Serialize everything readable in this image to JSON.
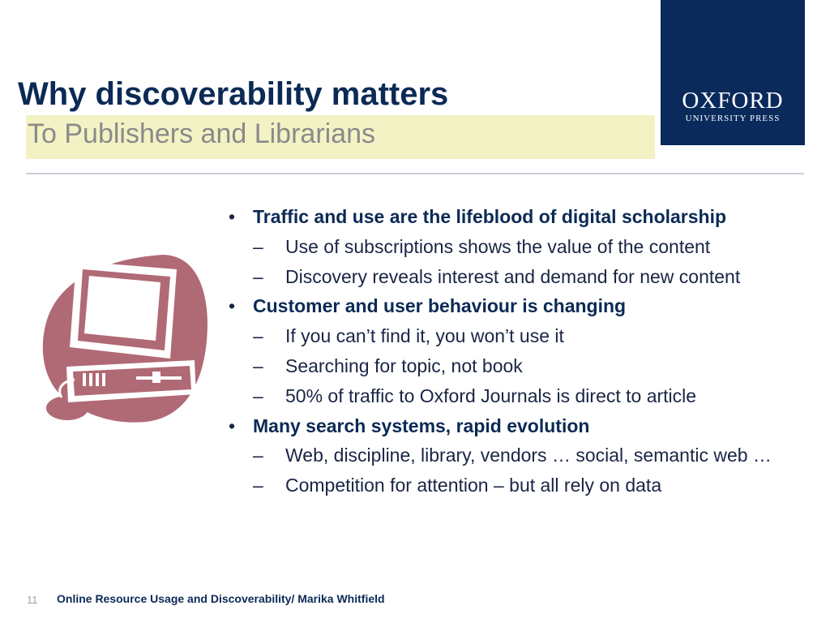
{
  "slide": {
    "title": "Why discoverability matters",
    "subtitle": "To Publishers and Librarians"
  },
  "logo": {
    "main": "OXFORD",
    "sub": "UNIVERSITY PRESS"
  },
  "bullets": [
    {
      "level": 1,
      "marker": "•",
      "text": "Traffic and use are the lifeblood of digital scholarship"
    },
    {
      "level": 2,
      "marker": "–",
      "text": "Use of subscriptions shows the value of the content"
    },
    {
      "level": 2,
      "marker": "–",
      "text": "Discovery reveals interest and demand for new content"
    },
    {
      "level": 1,
      "marker": "•",
      "text": "Customer and user behaviour is changing"
    },
    {
      "level": 2,
      "marker": "–",
      "text": "If you can’t find it, you won’t use it"
    },
    {
      "level": 2,
      "marker": "–",
      "text": "Searching for topic, not book"
    },
    {
      "level": 2,
      "marker": "–",
      "text": "50% of traffic to Oxford Journals is direct to article"
    },
    {
      "level": 1,
      "marker": "•",
      "text": "Many search systems, rapid evolution"
    },
    {
      "level": 2,
      "marker": "–",
      "text": "Web, discipline, library, vendors … social, semantic web …"
    },
    {
      "level": 2,
      "marker": "–",
      "text": "Competition for attention – but all rely on data"
    }
  ],
  "footer": {
    "page_number": "11",
    "text": "Online Resource Usage and Discoverability/ Marika Whitfield"
  },
  "colors": {
    "title": "#0b2a55",
    "logo_background": "#0a2a5c",
    "subtitle_band": "#f3f2c4",
    "illustration": "#b06a75"
  },
  "icons": {
    "illustration": "computer-clipart-icon"
  }
}
